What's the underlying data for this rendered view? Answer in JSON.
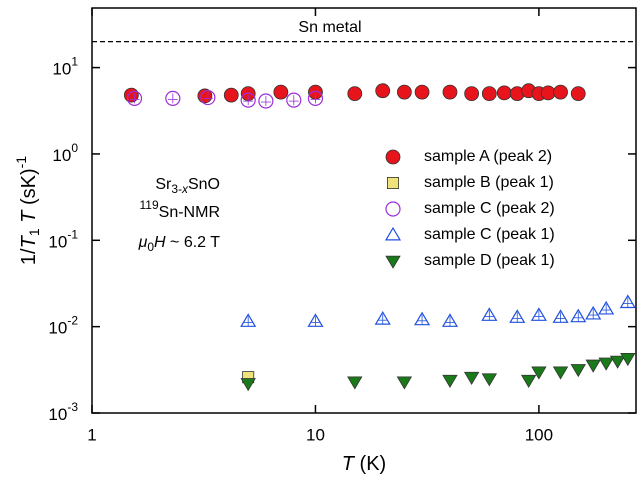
{
  "chart_data": {
    "type": "scatter",
    "xlabel": [
      "T",
      " (K)"
    ],
    "ylabel": [
      "1/",
      "T",
      "1",
      " ",
      "T",
      " (sK)",
      "-1"
    ],
    "annotation": [
      [
        "Sr",
        "3-",
        "x",
        "SnO"
      ],
      [
        "119",
        "Sn-NMR"
      ],
      [
        "μ",
        "0",
        "H",
        " ~ 6.2 T"
      ]
    ],
    "hline": {
      "value": 20,
      "label": "Sn metal"
    },
    "xscale": "log",
    "yscale": "log",
    "xlim": [
      1,
      272
    ],
    "ylim": [
      0.001,
      49
    ],
    "xticks": [
      1,
      10,
      100
    ],
    "yticks": [
      {
        "value": 0.001,
        "label": "10",
        "exponent": "-3"
      },
      {
        "value": 0.01,
        "label": "10",
        "exponent": "-2"
      },
      {
        "value": 0.1,
        "label": "10",
        "exponent": "-1"
      },
      {
        "value": 1,
        "label": "10",
        "exponent": "0"
      },
      {
        "value": 10,
        "label": "10",
        "exponent": "1"
      }
    ],
    "legend": "center right",
    "series": [
      {
        "name": "sample A (peak 2)",
        "marker": "circle",
        "filled": true,
        "color": "#e8141c",
        "x": [
          1.5,
          3.2,
          4.2,
          5,
          7,
          10,
          15,
          20,
          25,
          30,
          40,
          50,
          60,
          70,
          80,
          90,
          100,
          110,
          125,
          150
        ],
        "values": [
          4.8,
          4.7,
          4.8,
          5.0,
          5.2,
          5.2,
          5.0,
          5.4,
          5.2,
          5.2,
          5.2,
          5.0,
          5.0,
          5.1,
          5.0,
          5.4,
          5.0,
          5.1,
          5.2,
          5.0
        ]
      },
      {
        "name": "sample B (peak 1)",
        "marker": "square",
        "filled": true,
        "color": "#f0e27a",
        "x": [
          5
        ],
        "values": [
          0.0026
        ]
      },
      {
        "name": "sample C (peak 2)",
        "marker": "circle",
        "filled": false,
        "color": "#9b30d9",
        "x": [
          1.55,
          2.3,
          3.3,
          5,
          6,
          8,
          10
        ],
        "values": [
          4.4,
          4.4,
          4.5,
          4.2,
          4.1,
          4.2,
          4.4
        ]
      },
      {
        "name": "sample C (peak 1)",
        "marker": "triangle-up",
        "filled": false,
        "color": "#2050e0",
        "x": [
          5,
          10,
          20,
          30,
          40,
          60,
          80,
          100,
          125,
          150,
          175,
          200,
          250
        ],
        "values": [
          0.0115,
          0.0115,
          0.0122,
          0.012,
          0.0115,
          0.0135,
          0.0128,
          0.0135,
          0.0128,
          0.013,
          0.014,
          0.016,
          0.019
        ]
      },
      {
        "name": "sample D (peak 1)",
        "marker": "triangle-down",
        "filled": true,
        "color": "#1a7a1a",
        "x": [
          5,
          15,
          25,
          40,
          50,
          60,
          90,
          100,
          125,
          150,
          175,
          200,
          225,
          250
        ],
        "values": [
          0.0022,
          0.0023,
          0.0023,
          0.0024,
          0.0026,
          0.0025,
          0.0024,
          0.003,
          0.003,
          0.0032,
          0.0036,
          0.0038,
          0.004,
          0.0043
        ]
      }
    ]
  }
}
